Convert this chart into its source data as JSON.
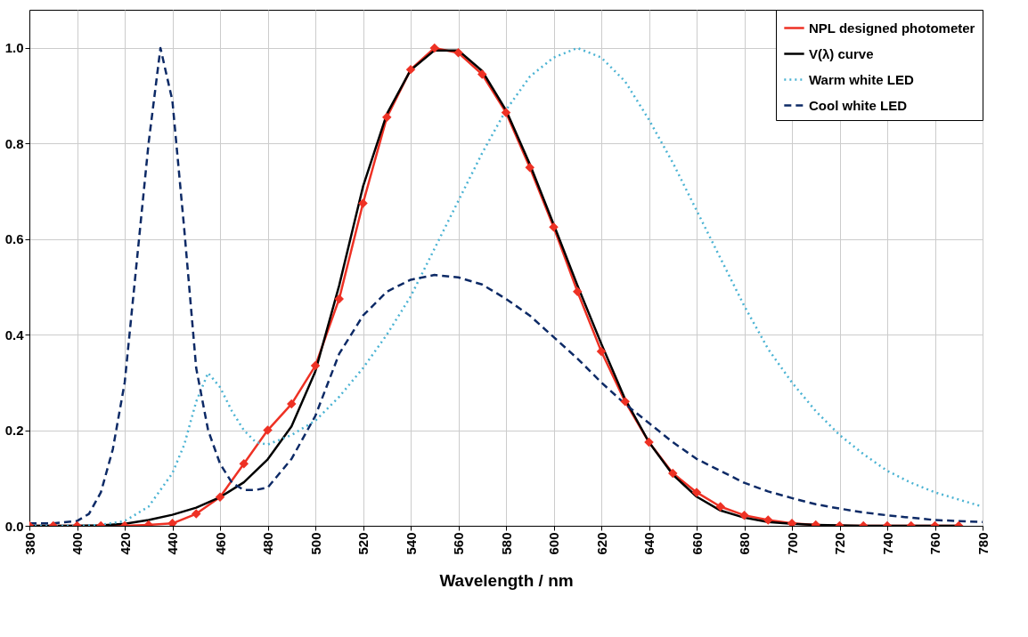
{
  "chart_data": {
    "type": "line",
    "xlabel": "Wavelength / nm",
    "xlim": [
      380,
      780
    ],
    "ylim": [
      0,
      1.08
    ],
    "xticks": [
      380,
      400,
      420,
      440,
      460,
      480,
      500,
      520,
      540,
      560,
      580,
      600,
      620,
      640,
      660,
      680,
      700,
      720,
      740,
      760,
      780
    ],
    "yticks": [
      {
        "value": 0,
        "label": "0.0"
      },
      {
        "value": 0.2,
        "label": "0.2"
      },
      {
        "value": 0.4,
        "label": "0.4"
      },
      {
        "value": 0.6,
        "label": "0.6"
      },
      {
        "value": 0.8,
        "label": "0.8"
      },
      {
        "value": 1,
        "label": "1.0"
      }
    ],
    "grid": true,
    "legend": "top right",
    "series": [
      {
        "name": "NPL designed photometer",
        "color": "#ee3124",
        "marker": "diamond",
        "line_style": "solid",
        "x": [
          380,
          390,
          400,
          410,
          420,
          430,
          440,
          450,
          460,
          470,
          480,
          490,
          500,
          510,
          520,
          530,
          540,
          550,
          560,
          570,
          580,
          590,
          600,
          610,
          620,
          630,
          640,
          650,
          660,
          670,
          680,
          690,
          700,
          710,
          720,
          730,
          740,
          750,
          760,
          770
        ],
        "values": [
          0,
          0,
          0,
          0,
          0,
          0.002,
          0.005,
          0.025,
          0.06,
          0.13,
          0.2,
          0.255,
          0.335,
          0.475,
          0.675,
          0.855,
          0.955,
          1.0,
          0.99,
          0.945,
          0.865,
          0.75,
          0.625,
          0.49,
          0.365,
          0.26,
          0.175,
          0.11,
          0.07,
          0.04,
          0.022,
          0.012,
          0.005,
          0.002,
          0,
          0,
          0,
          0,
          0,
          0
        ]
      },
      {
        "name": "V(λ) curve",
        "color": "#000000",
        "marker": "none",
        "line_style": "solid",
        "x": [
          380,
          390,
          400,
          410,
          420,
          430,
          440,
          450,
          460,
          470,
          480,
          490,
          500,
          510,
          520,
          530,
          540,
          550,
          560,
          570,
          580,
          590,
          600,
          610,
          620,
          630,
          640,
          650,
          660,
          670,
          680,
          690,
          700,
          710,
          720,
          730,
          740,
          750,
          760,
          770
        ],
        "values": [
          0,
          0,
          0,
          0.001,
          0.004,
          0.012,
          0.023,
          0.038,
          0.06,
          0.091,
          0.139,
          0.208,
          0.323,
          0.503,
          0.71,
          0.862,
          0.954,
          0.995,
          0.995,
          0.952,
          0.87,
          0.757,
          0.631,
          0.503,
          0.381,
          0.265,
          0.175,
          0.107,
          0.061,
          0.032,
          0.017,
          0.008,
          0.004,
          0.002,
          0.001,
          0,
          0,
          0,
          0,
          0
        ]
      },
      {
        "name": "Warm white LED",
        "color": "#4bb3d3",
        "marker": "none",
        "line_style": "dotted",
        "x": [
          380,
          400,
          410,
          420,
          430,
          440,
          445,
          450,
          455,
          460,
          465,
          470,
          475,
          480,
          490,
          500,
          510,
          520,
          530,
          540,
          550,
          560,
          570,
          580,
          590,
          600,
          610,
          620,
          630,
          640,
          650,
          660,
          670,
          680,
          690,
          700,
          710,
          720,
          730,
          740,
          750,
          760,
          770,
          780
        ],
        "values": [
          0,
          0,
          0.002,
          0.01,
          0.04,
          0.11,
          0.17,
          0.26,
          0.32,
          0.29,
          0.24,
          0.2,
          0.175,
          0.17,
          0.19,
          0.22,
          0.27,
          0.33,
          0.4,
          0.48,
          0.58,
          0.68,
          0.78,
          0.87,
          0.94,
          0.98,
          1.0,
          0.98,
          0.93,
          0.85,
          0.76,
          0.66,
          0.56,
          0.46,
          0.37,
          0.3,
          0.24,
          0.19,
          0.15,
          0.115,
          0.09,
          0.07,
          0.055,
          0.04
        ]
      },
      {
        "name": "Cool white LED",
        "color": "#0d2a66",
        "marker": "none",
        "line_style": "dashed",
        "x": [
          380,
          390,
          400,
          405,
          410,
          415,
          420,
          425,
          430,
          435,
          440,
          445,
          450,
          455,
          460,
          465,
          470,
          475,
          480,
          490,
          500,
          510,
          520,
          530,
          540,
          550,
          560,
          570,
          580,
          590,
          600,
          610,
          620,
          630,
          640,
          650,
          660,
          670,
          680,
          690,
          700,
          710,
          720,
          730,
          740,
          750,
          760,
          770,
          780
        ],
        "values": [
          0.005,
          0.005,
          0.01,
          0.025,
          0.07,
          0.16,
          0.3,
          0.55,
          0.8,
          1.0,
          0.89,
          0.62,
          0.33,
          0.2,
          0.13,
          0.09,
          0.075,
          0.075,
          0.08,
          0.14,
          0.23,
          0.36,
          0.44,
          0.49,
          0.515,
          0.525,
          0.52,
          0.505,
          0.475,
          0.44,
          0.395,
          0.35,
          0.3,
          0.255,
          0.215,
          0.175,
          0.14,
          0.115,
          0.09,
          0.072,
          0.058,
          0.045,
          0.036,
          0.028,
          0.022,
          0.017,
          0.012,
          0.01,
          0.008
        ]
      }
    ]
  }
}
